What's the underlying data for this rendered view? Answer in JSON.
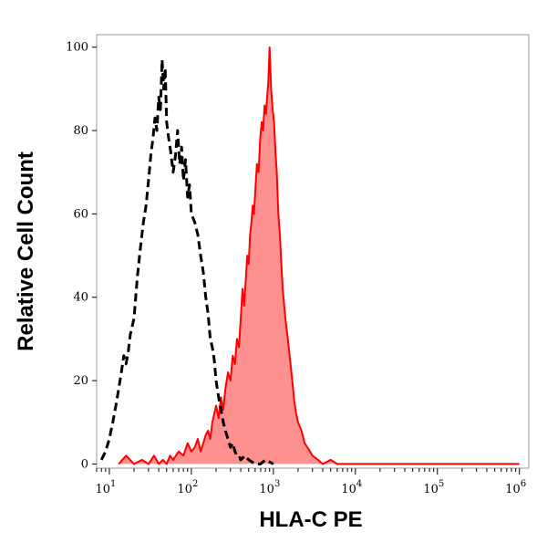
{
  "chart_data": {
    "type": "area",
    "title": "",
    "xlabel": "HLA-C PE",
    "ylabel": "Relative Cell Count",
    "x_scale": "log",
    "xlim": [
      7,
      1300000
    ],
    "ylim": [
      -1,
      103
    ],
    "x_ticks": [
      {
        "value": 10,
        "base": "10",
        "exp": "1"
      },
      {
        "value": 100,
        "base": "10",
        "exp": "2"
      },
      {
        "value": 1000,
        "base": "10",
        "exp": "3"
      },
      {
        "value": 10000,
        "base": "10",
        "exp": "4"
      },
      {
        "value": 100000,
        "base": "10",
        "exp": "5"
      },
      {
        "value": 1000000,
        "base": "10",
        "exp": "6"
      }
    ],
    "y_ticks": [
      {
        "value": 0,
        "label": "0"
      },
      {
        "value": 20,
        "label": "20"
      },
      {
        "value": 40,
        "label": "40"
      },
      {
        "value": 60,
        "label": "60"
      },
      {
        "value": 80,
        "label": "80"
      },
      {
        "value": 100,
        "label": "100"
      }
    ],
    "grid": false,
    "legend": "none",
    "series": [
      {
        "style": "dashed",
        "color": "#000000",
        "fill": "none",
        "x": [
          8,
          9,
          10,
          11,
          12,
          13,
          14,
          15,
          16,
          17,
          18,
          19,
          20,
          22,
          24,
          26,
          28,
          30,
          32,
          34,
          36,
          38,
          40,
          42,
          44,
          46,
          48,
          50,
          53,
          56,
          60,
          64,
          68,
          72,
          76,
          80,
          85,
          90,
          95,
          100,
          110,
          120,
          130,
          140,
          150,
          160,
          170,
          180,
          190,
          200,
          215,
          230,
          245,
          260,
          280,
          300,
          320,
          340,
          360,
          380,
          400,
          450,
          500,
          600,
          700,
          800,
          1000
        ],
        "y": [
          1,
          3,
          6,
          10,
          14,
          18,
          22,
          26,
          24,
          27,
          31,
          33,
          35,
          45,
          52,
          58,
          62,
          68,
          74,
          78,
          83,
          80,
          88,
          85,
          97,
          90,
          95,
          82,
          78,
          75,
          70,
          74,
          80,
          72,
          76,
          68,
          73,
          64,
          67,
          60,
          58,
          55,
          50,
          46,
          40,
          36,
          30,
          28,
          25,
          20,
          16,
          13,
          10,
          8,
          6,
          4,
          5,
          3,
          2,
          2,
          1,
          2,
          1,
          0,
          0,
          1,
          0
        ]
      },
      {
        "style": "solid",
        "color": "#ff0000",
        "fill": "#ff9090",
        "x": [
          13,
          16,
          20,
          25,
          30,
          35,
          40,
          45,
          50,
          55,
          60,
          70,
          80,
          90,
          100,
          110,
          120,
          130,
          140,
          150,
          160,
          170,
          180,
          190,
          200,
          215,
          230,
          245,
          260,
          280,
          300,
          320,
          340,
          360,
          380,
          400,
          420,
          440,
          460,
          480,
          500,
          520,
          540,
          560,
          580,
          600,
          630,
          660,
          690,
          720,
          750,
          780,
          810,
          840,
          870,
          900,
          940,
          980,
          1020,
          1060,
          1100,
          1150,
          1200,
          1250,
          1300,
          1400,
          1500,
          1600,
          1700,
          1800,
          1900,
          2000,
          2200,
          2400,
          2600,
          2800,
          3000,
          3500,
          4000,
          5000,
          6000,
          8000,
          10000,
          20000,
          50000,
          100000,
          500000,
          1000000
        ],
        "y": [
          0,
          2,
          0,
          1,
          0,
          2,
          0,
          1,
          0,
          2,
          1,
          3,
          2,
          5,
          3,
          4,
          6,
          3,
          5,
          7,
          8,
          6,
          10,
          12,
          14,
          11,
          16,
          13,
          18,
          22,
          20,
          26,
          24,
          30,
          28,
          35,
          42,
          38,
          44,
          50,
          48,
          55,
          58,
          62,
          60,
          65,
          72,
          70,
          78,
          82,
          80,
          86,
          84,
          88,
          92,
          100,
          90,
          85,
          82,
          75,
          70,
          60,
          55,
          48,
          42,
          35,
          30,
          25,
          20,
          15,
          12,
          10,
          8,
          5,
          4,
          3,
          2,
          1,
          0,
          1,
          0,
          0,
          0,
          0,
          0,
          0,
          0,
          0
        ]
      }
    ]
  }
}
